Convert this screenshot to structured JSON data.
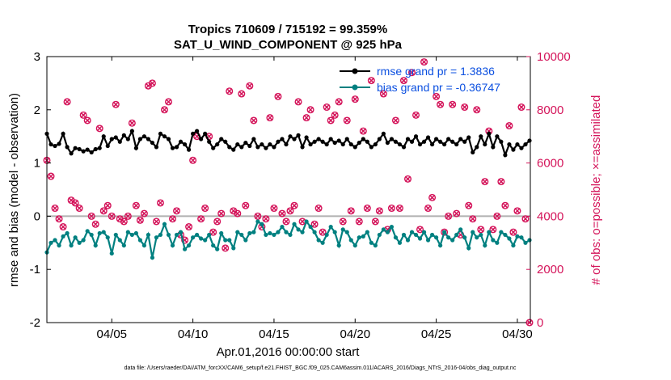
{
  "chart_data": {
    "type": "line",
    "title": "Tropics 710609 / 715192 = 99.359%",
    "subtitle": "SAT_U_WIND_COMPONENT @ 925 hPa",
    "xlabel": "Apr.01,2016 00:00:00 start",
    "ylabel": "rmse and bias (model - observation)",
    "ylabel_right": "# of obs: o=possible; ×=assimilated",
    "xlim": [
      1.0,
      30.8
    ],
    "ylim": [
      -2,
      3
    ],
    "ylim_right": [
      0,
      10000
    ],
    "x_ticks": [
      5,
      10,
      15,
      20,
      25,
      30
    ],
    "x_tick_labels": [
      "04/05",
      "04/10",
      "04/15",
      "04/20",
      "04/25",
      "04/30"
    ],
    "y_ticks": [
      -2,
      -1,
      0,
      1,
      2,
      3
    ],
    "y_tick_labels": [
      "-2",
      "-1",
      "0",
      "1",
      "2",
      "3"
    ],
    "y_right_ticks": [
      0,
      2000,
      4000,
      6000,
      8000,
      10000
    ],
    "y_right_tick_labels": [
      "0",
      "2000",
      "4000",
      "6000",
      "8000",
      "10000"
    ],
    "zero_line": 0,
    "legend": [
      "rmse grand pr = 1.3836",
      "bias grand pr = -0.36747"
    ],
    "footnote": "data file: /Users/raeder/DAI/ATM_forcXX/CAM6_setup/f.e21.FHIST_BGC.f09_025.CAM6assim.011/ACARS_2016/Diags_NTrS_2016-04/obs_diag_output.nc",
    "series": [
      {
        "name": "rmse",
        "color": "#000000",
        "x": [
          1.0,
          1.25,
          1.5,
          1.75,
          2.0,
          2.25,
          2.5,
          2.75,
          3.0,
          3.25,
          3.5,
          3.75,
          4.0,
          4.25,
          4.5,
          4.75,
          5.0,
          5.25,
          5.5,
          5.75,
          6.0,
          6.25,
          6.5,
          6.75,
          7.0,
          7.25,
          7.5,
          7.75,
          8.0,
          8.25,
          8.5,
          8.75,
          9.0,
          9.25,
          9.5,
          9.75,
          10.0,
          10.25,
          10.5,
          10.75,
          11.0,
          11.25,
          11.5,
          11.75,
          12.0,
          12.25,
          12.5,
          12.75,
          13.0,
          13.25,
          13.5,
          13.75,
          14.0,
          14.25,
          14.5,
          14.75,
          15.0,
          15.25,
          15.5,
          15.75,
          16.0,
          16.25,
          16.5,
          16.75,
          17.0,
          17.25,
          17.5,
          17.75,
          18.0,
          18.25,
          18.5,
          18.75,
          19.0,
          19.25,
          19.5,
          19.75,
          20.0,
          20.25,
          20.5,
          20.75,
          21.0,
          21.25,
          21.5,
          21.75,
          22.0,
          22.25,
          22.5,
          22.75,
          23.0,
          23.25,
          23.5,
          23.75,
          24.0,
          24.25,
          24.5,
          24.75,
          25.0,
          25.25,
          25.5,
          25.75,
          26.0,
          26.25,
          26.5,
          26.75,
          27.0,
          27.25,
          27.5,
          27.75,
          28.0,
          28.25,
          28.5,
          28.75,
          29.0,
          29.25,
          29.5,
          29.75,
          30.0,
          30.25,
          30.5,
          30.75
        ],
        "values": [
          1.55,
          1.35,
          1.32,
          1.36,
          1.55,
          1.3,
          1.18,
          1.28,
          1.26,
          1.22,
          1.25,
          1.2,
          1.26,
          1.28,
          1.5,
          1.32,
          1.45,
          1.48,
          1.4,
          1.52,
          1.45,
          1.6,
          1.28,
          1.45,
          1.5,
          1.45,
          1.38,
          1.3,
          1.55,
          1.5,
          1.45,
          1.28,
          1.3,
          1.4,
          1.35,
          1.25,
          1.55,
          1.6,
          1.45,
          1.55,
          1.4,
          1.28,
          1.35,
          1.45,
          1.4,
          1.3,
          1.25,
          1.35,
          1.3,
          1.38,
          1.32,
          1.45,
          1.3,
          1.35,
          1.28,
          1.35,
          1.3,
          1.4,
          1.45,
          1.35,
          1.5,
          1.45,
          1.52,
          1.3,
          1.48,
          1.35,
          1.4,
          1.45,
          1.4,
          1.35,
          1.45,
          1.38,
          1.42,
          1.35,
          1.45,
          1.35,
          1.3,
          1.38,
          1.45,
          1.4,
          1.3,
          1.35,
          1.45,
          1.55,
          1.38,
          1.45,
          1.4,
          1.35,
          1.3,
          1.45,
          1.4,
          1.5,
          1.35,
          1.4,
          1.48,
          1.35,
          1.45,
          1.4,
          1.35,
          1.45,
          1.4,
          1.35,
          1.45,
          1.4,
          1.48,
          1.2,
          1.3,
          1.5,
          1.35,
          1.55,
          1.3,
          1.5,
          1.4,
          1.15,
          1.35,
          1.25,
          1.35,
          1.28,
          1.35,
          1.42
        ]
      },
      {
        "name": "bias",
        "color": "#008080",
        "x": [
          1.0,
          1.25,
          1.5,
          1.75,
          2.0,
          2.25,
          2.5,
          2.75,
          3.0,
          3.25,
          3.5,
          3.75,
          4.0,
          4.25,
          4.5,
          4.75,
          5.0,
          5.25,
          5.5,
          5.75,
          6.0,
          6.25,
          6.5,
          6.75,
          7.0,
          7.25,
          7.5,
          7.75,
          8.0,
          8.25,
          8.5,
          8.75,
          9.0,
          9.25,
          9.5,
          9.75,
          10.0,
          10.25,
          10.5,
          10.75,
          11.0,
          11.25,
          11.5,
          11.75,
          12.0,
          12.25,
          12.5,
          12.75,
          13.0,
          13.25,
          13.5,
          13.75,
          14.0,
          14.25,
          14.5,
          14.75,
          15.0,
          15.25,
          15.5,
          15.75,
          16.0,
          16.25,
          16.5,
          16.75,
          17.0,
          17.25,
          17.5,
          17.75,
          18.0,
          18.25,
          18.5,
          18.75,
          19.0,
          19.25,
          19.5,
          19.75,
          20.0,
          20.25,
          20.5,
          20.75,
          21.0,
          21.25,
          21.5,
          21.75,
          22.0,
          22.25,
          22.5,
          22.75,
          23.0,
          23.25,
          23.5,
          23.75,
          24.0,
          24.25,
          24.5,
          24.75,
          25.0,
          25.25,
          25.5,
          25.75,
          26.0,
          26.25,
          26.5,
          26.75,
          27.0,
          27.25,
          27.5,
          27.75,
          28.0,
          28.25,
          28.5,
          28.75,
          29.0,
          29.25,
          29.5,
          29.75,
          30.0,
          30.25,
          30.5,
          30.75
        ],
        "values": [
          -0.68,
          -0.5,
          -0.45,
          -0.55,
          -0.38,
          -0.32,
          -0.55,
          -0.4,
          -0.5,
          -0.45,
          -0.28,
          -0.35,
          -0.55,
          -0.32,
          -0.3,
          -0.4,
          -0.7,
          -0.35,
          -0.45,
          -0.55,
          -0.3,
          -0.35,
          -0.32,
          -0.45,
          -0.55,
          -0.35,
          -0.78,
          -0.4,
          -0.35,
          -0.15,
          -0.35,
          -0.55,
          -0.35,
          -0.3,
          -0.62,
          -0.55,
          -0.4,
          -0.35,
          -0.42,
          -0.45,
          -0.35,
          -0.55,
          -0.62,
          -0.32,
          -0.45,
          -0.45,
          -0.6,
          -0.3,
          -0.35,
          -0.45,
          -0.32,
          -0.3,
          -0.1,
          -0.15,
          -0.35,
          -0.32,
          -0.35,
          -0.3,
          -0.2,
          -0.3,
          -0.35,
          -0.15,
          -0.25,
          -0.3,
          -0.1,
          -0.2,
          -0.3,
          -0.45,
          -0.5,
          -0.35,
          -0.2,
          -0.3,
          -0.55,
          -0.25,
          -0.3,
          -0.45,
          -0.55,
          -0.4,
          -0.38,
          -0.3,
          -0.5,
          -0.55,
          -0.35,
          -0.25,
          -0.3,
          -0.2,
          -0.4,
          -0.5,
          -0.35,
          -0.45,
          -0.3,
          -0.35,
          -0.42,
          -0.3,
          -0.45,
          -0.35,
          -0.4,
          -0.55,
          -0.3,
          -0.4,
          -0.45,
          -0.35,
          -0.25,
          -0.4,
          -0.6,
          -0.3,
          -0.4,
          -0.35,
          -0.55,
          -0.3,
          -0.45,
          -0.5,
          -0.3,
          -0.35,
          -0.42,
          -0.55,
          -0.38,
          -0.4,
          -0.5,
          -0.45
        ]
      },
      {
        "name": "# of obs possible",
        "axis": "right",
        "marker": "o",
        "color": "#d4145a",
        "x": [
          1.0,
          1.25,
          1.5,
          1.75,
          2.0,
          2.25,
          2.5,
          2.75,
          3.0,
          3.25,
          3.5,
          3.75,
          4.0,
          4.25,
          4.5,
          4.75,
          5.0,
          5.25,
          5.5,
          5.75,
          6.0,
          6.25,
          6.5,
          6.75,
          7.0,
          7.25,
          7.5,
          7.75,
          8.0,
          8.25,
          8.5,
          8.75,
          9.0,
          9.25,
          9.5,
          9.75,
          10.0,
          10.25,
          10.5,
          10.75,
          11.0,
          11.25,
          11.5,
          11.75,
          12.0,
          12.25,
          12.5,
          12.75,
          13.0,
          13.25,
          13.5,
          13.75,
          14.0,
          14.25,
          14.5,
          14.75,
          15.0,
          15.25,
          15.5,
          15.75,
          16.0,
          16.25,
          16.5,
          16.75,
          17.0,
          17.25,
          17.5,
          17.75,
          18.0,
          18.25,
          18.5,
          18.75,
          19.0,
          19.25,
          19.5,
          19.75,
          20.0,
          20.25,
          20.5,
          20.75,
          21.0,
          21.25,
          21.5,
          21.75,
          22.0,
          22.25,
          22.5,
          22.75,
          23.0,
          23.25,
          23.5,
          23.75,
          24.0,
          24.25,
          24.5,
          24.75,
          25.0,
          25.25,
          25.5,
          25.75,
          26.0,
          26.25,
          26.5,
          26.75,
          27.0,
          27.25,
          27.5,
          27.75,
          28.0,
          28.25,
          28.5,
          28.75,
          29.0,
          29.25,
          29.5,
          29.75,
          30.0,
          30.25,
          30.5,
          30.75
        ],
        "values": [
          6100,
          5500,
          4300,
          3900,
          3600,
          8300,
          4600,
          4500,
          4300,
          7800,
          7600,
          4000,
          3700,
          7300,
          4200,
          4400,
          4000,
          8200,
          3900,
          3800,
          4000,
          7500,
          4400,
          3850,
          4100,
          8900,
          9000,
          3800,
          4500,
          8000,
          8300,
          3900,
          4200,
          3300,
          3100,
          3600,
          6100,
          7000,
          3900,
          4300,
          7000,
          3400,
          3800,
          4100,
          2800,
          8700,
          4200,
          4100,
          8600,
          4400,
          8900,
          7600,
          4000,
          3600,
          3900,
          7700,
          4300,
          8500,
          4100,
          3800,
          4200,
          4400,
          8300,
          3800,
          7700,
          8000,
          3700,
          4300,
          3400,
          8100,
          7600,
          7800,
          8300,
          3800,
          7600,
          4200,
          8400,
          3800,
          7200,
          4300,
          9100,
          3800,
          4200,
          8600,
          3500,
          4300,
          7600,
          4300,
          9100,
          5400,
          9400,
          7800,
          3500,
          9800,
          4300,
          4700,
          8500,
          8200,
          3400,
          4000,
          8200,
          4100,
          3300,
          8100,
          4400,
          3900,
          8000,
          3500,
          5300,
          7200,
          3500,
          4000,
          5300,
          4400,
          7400,
          3400,
          4200,
          8100,
          3900,
          0
        ]
      }
    ]
  }
}
